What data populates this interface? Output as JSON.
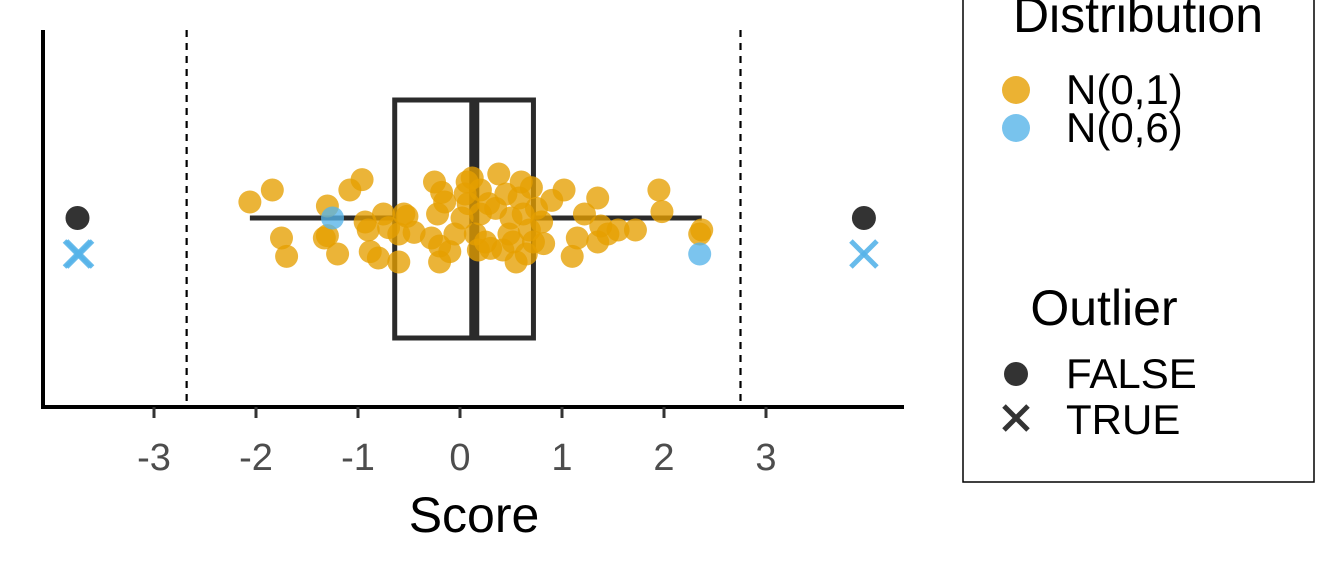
{
  "chart_data": {
    "type": "boxplot-jitter",
    "xlabel": "Score",
    "xticks": [
      -3,
      -2,
      -1,
      0,
      1,
      2,
      3
    ],
    "xlim": [
      -4.05,
      4.4
    ],
    "grid": false,
    "box": {
      "q1": -0.64,
      "median": 0.14,
      "q3": 0.72,
      "whisker_low": -2.06,
      "whisker_high": 2.37
    },
    "fences": [
      -2.68,
      2.75
    ],
    "legend_position": "right",
    "legends": [
      {
        "title": "Distribution",
        "entries": [
          {
            "label": "N(0,1)",
            "color": "#E69F00",
            "shape": "circle"
          },
          {
            "label": "N(0,6)",
            "color": "#56B4E9",
            "shape": "circle"
          }
        ]
      },
      {
        "title": "Outlier",
        "entries": [
          {
            "label": "FALSE",
            "color": "#333333",
            "shape": "circle"
          },
          {
            "label": "TRUE",
            "color": "#333333",
            "shape": "cross"
          }
        ]
      }
    ],
    "outlier_markers": [
      {
        "x": -3.75,
        "outlier": false,
        "color": "#333333"
      },
      {
        "x": -3.75,
        "outlier": true,
        "color": "#56B4E9"
      },
      {
        "x": -3.73,
        "outlier": true,
        "color": "#56B4E9"
      },
      {
        "x": 3.96,
        "outlier": false,
        "color": "#333333"
      },
      {
        "x": 3.96,
        "outlier": true,
        "color": "#56B4E9"
      }
    ],
    "series": [
      {
        "name": "N(0,6)",
        "color": "#56B4E9",
        "points": [
          {
            "x": -1.25,
            "jitter": 0.0
          },
          {
            "x": 2.35,
            "jitter": -0.45
          }
        ]
      },
      {
        "name": "N(0,1)",
        "color": "#E69F00",
        "points": [
          {
            "x": -2.06,
            "jitter": 0.2
          },
          {
            "x": -1.84,
            "jitter": 0.35
          },
          {
            "x": -1.75,
            "jitter": -0.25
          },
          {
            "x": -1.7,
            "jitter": -0.48
          },
          {
            "x": -1.3,
            "jitter": 0.15
          },
          {
            "x": -1.33,
            "jitter": -0.25
          },
          {
            "x": -1.3,
            "jitter": -0.22
          },
          {
            "x": -1.2,
            "jitter": -0.45
          },
          {
            "x": -1.08,
            "jitter": 0.35
          },
          {
            "x": -0.96,
            "jitter": 0.48
          },
          {
            "x": -0.9,
            "jitter": -0.15
          },
          {
            "x": -0.88,
            "jitter": -0.42
          },
          {
            "x": -0.8,
            "jitter": -0.5
          },
          {
            "x": -0.93,
            "jitter": -0.05
          },
          {
            "x": -0.75,
            "jitter": 0.05
          },
          {
            "x": -0.7,
            "jitter": -0.12
          },
          {
            "x": -0.6,
            "jitter": -0.2
          },
          {
            "x": -0.55,
            "jitter": 0.05
          },
          {
            "x": -0.6,
            "jitter": -0.55
          },
          {
            "x": -0.52,
            "jitter": 0.02
          },
          {
            "x": -0.45,
            "jitter": -0.18
          },
          {
            "x": -0.28,
            "jitter": -0.25
          },
          {
            "x": -0.2,
            "jitter": -0.35
          },
          {
            "x": -0.22,
            "jitter": 0.05
          },
          {
            "x": -0.25,
            "jitter": 0.45
          },
          {
            "x": -0.18,
            "jitter": 0.32
          },
          {
            "x": -0.2,
            "jitter": -0.55
          },
          {
            "x": -0.1,
            "jitter": -0.42
          },
          {
            "x": -0.15,
            "jitter": 0.2
          },
          {
            "x": -0.05,
            "jitter": -0.2
          },
          {
            "x": 0.02,
            "jitter": 0.0
          },
          {
            "x": 0.05,
            "jitter": 0.3
          },
          {
            "x": 0.07,
            "jitter": 0.45
          },
          {
            "x": 0.12,
            "jitter": 0.5
          },
          {
            "x": 0.08,
            "jitter": 0.18
          },
          {
            "x": 0.15,
            "jitter": -0.2
          },
          {
            "x": 0.18,
            "jitter": -0.4
          },
          {
            "x": 0.2,
            "jitter": 0.35
          },
          {
            "x": 0.2,
            "jitter": 0.05
          },
          {
            "x": 0.25,
            "jitter": -0.3
          },
          {
            "x": 0.28,
            "jitter": 0.18
          },
          {
            "x": 0.3,
            "jitter": -0.38
          },
          {
            "x": 0.35,
            "jitter": 0.12
          },
          {
            "x": 0.38,
            "jitter": 0.55
          },
          {
            "x": 0.42,
            "jitter": -0.4
          },
          {
            "x": 0.45,
            "jitter": 0.3
          },
          {
            "x": 0.48,
            "jitter": -0.2
          },
          {
            "x": 0.5,
            "jitter": 0.0
          },
          {
            "x": 0.52,
            "jitter": -0.3
          },
          {
            "x": 0.55,
            "jitter": -0.55
          },
          {
            "x": 0.58,
            "jitter": 0.25
          },
          {
            "x": 0.6,
            "jitter": 0.45
          },
          {
            "x": 0.62,
            "jitter": 0.05
          },
          {
            "x": 0.65,
            "jitter": -0.45
          },
          {
            "x": 0.68,
            "jitter": -0.15
          },
          {
            "x": 0.7,
            "jitter": 0.38
          },
          {
            "x": 0.72,
            "jitter": -0.3
          },
          {
            "x": 0.75,
            "jitter": 0.12
          },
          {
            "x": 0.8,
            "jitter": -0.05
          },
          {
            "x": 0.82,
            "jitter": -0.32
          },
          {
            "x": 0.9,
            "jitter": 0.22
          },
          {
            "x": 1.02,
            "jitter": 0.35
          },
          {
            "x": 1.1,
            "jitter": -0.48
          },
          {
            "x": 1.15,
            "jitter": -0.25
          },
          {
            "x": 1.22,
            "jitter": 0.05
          },
          {
            "x": 1.35,
            "jitter": 0.25
          },
          {
            "x": 1.38,
            "jitter": -0.1
          },
          {
            "x": 1.35,
            "jitter": -0.3
          },
          {
            "x": 1.45,
            "jitter": -0.2
          },
          {
            "x": 1.55,
            "jitter": -0.15
          },
          {
            "x": 1.72,
            "jitter": -0.15
          },
          {
            "x": 1.95,
            "jitter": 0.35
          },
          {
            "x": 1.98,
            "jitter": 0.08
          },
          {
            "x": 2.37,
            "jitter": -0.15
          },
          {
            "x": 2.35,
            "jitter": -0.2
          }
        ]
      }
    ]
  }
}
